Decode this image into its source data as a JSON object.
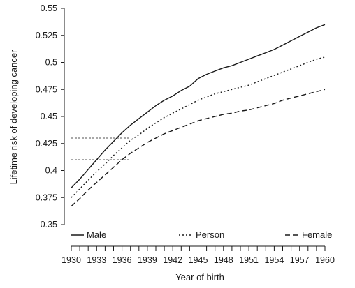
{
  "chart_data": {
    "type": "line",
    "title": "",
    "xlabel": "Year of birth",
    "ylabel": "Lifetime risk of developing cancer",
    "xlim": [
      1930,
      1960
    ],
    "ylim": [
      0.35,
      0.55
    ],
    "x_ticks": [
      1930,
      1933,
      1936,
      1939,
      1942,
      1945,
      1948,
      1951,
      1954,
      1957,
      1960
    ],
    "x_tick_labels": [
      "1930",
      "1933",
      "1936",
      "1939",
      "1942",
      "1945",
      "1948",
      "1951",
      "1954",
      "1957",
      "1960"
    ],
    "y_ticks": [
      0.35,
      0.375,
      0.4,
      0.425,
      0.45,
      0.475,
      0.5,
      0.525,
      0.55
    ],
    "y_tick_labels": [
      "0.35",
      "0.375",
      "0.4",
      "0.425",
      "0.45",
      "0.475",
      "0.5",
      "0.525",
      "0.55"
    ],
    "grid": false,
    "legend_position": "bottom",
    "series": [
      {
        "name": "Male",
        "style": "solid",
        "color": "#1a1a1a",
        "x": [
          1930,
          1931,
          1932,
          1933,
          1934,
          1935,
          1936,
          1937,
          1938,
          1939,
          1940,
          1941,
          1942,
          1943,
          1944,
          1945,
          1946,
          1947,
          1948,
          1949,
          1950,
          1951,
          1952,
          1953,
          1954,
          1955,
          1956,
          1957,
          1958,
          1959,
          1960
        ],
        "values": [
          0.384,
          0.392,
          0.401,
          0.41,
          0.419,
          0.427,
          0.435,
          0.442,
          0.448,
          0.454,
          0.46,
          0.465,
          0.469,
          0.474,
          0.478,
          0.485,
          0.489,
          0.492,
          0.495,
          0.497,
          0.5,
          0.503,
          0.506,
          0.509,
          0.512,
          0.516,
          0.52,
          0.524,
          0.528,
          0.532,
          0.535
        ]
      },
      {
        "name": "Person",
        "style": "dotted",
        "color": "#1a1a1a",
        "x": [
          1930,
          1931,
          1932,
          1933,
          1934,
          1935,
          1936,
          1937,
          1938,
          1939,
          1940,
          1941,
          1942,
          1943,
          1944,
          1945,
          1946,
          1947,
          1948,
          1949,
          1950,
          1951,
          1952,
          1953,
          1954,
          1955,
          1956,
          1957,
          1958,
          1959,
          1960
        ],
        "values": [
          0.375,
          0.383,
          0.391,
          0.399,
          0.406,
          0.414,
          0.421,
          0.428,
          0.433,
          0.439,
          0.444,
          0.449,
          0.453,
          0.457,
          0.461,
          0.465,
          0.468,
          0.471,
          0.473,
          0.475,
          0.477,
          0.479,
          0.482,
          0.485,
          0.488,
          0.491,
          0.494,
          0.497,
          0.5,
          0.503,
          0.505
        ]
      },
      {
        "name": "Female",
        "style": "dashed",
        "color": "#1a1a1a",
        "x": [
          1930,
          1931,
          1932,
          1933,
          1934,
          1935,
          1936,
          1937,
          1938,
          1939,
          1940,
          1941,
          1942,
          1943,
          1944,
          1945,
          1946,
          1947,
          1948,
          1949,
          1950,
          1951,
          1952,
          1953,
          1954,
          1955,
          1956,
          1957,
          1958,
          1959,
          1960
        ],
        "values": [
          0.367,
          0.374,
          0.382,
          0.389,
          0.396,
          0.403,
          0.41,
          0.416,
          0.421,
          0.426,
          0.43,
          0.434,
          0.437,
          0.44,
          0.443,
          0.446,
          0.448,
          0.45,
          0.452,
          0.453,
          0.455,
          0.456,
          0.458,
          0.46,
          0.462,
          0.465,
          0.467,
          0.469,
          0.471,
          0.473,
          0.475
        ]
      }
    ],
    "guides": [
      {
        "y": 0.43,
        "x_from": 1930,
        "x_to": 1937
      },
      {
        "y": 0.41,
        "x_from": 1930,
        "x_to": 1937
      }
    ]
  }
}
